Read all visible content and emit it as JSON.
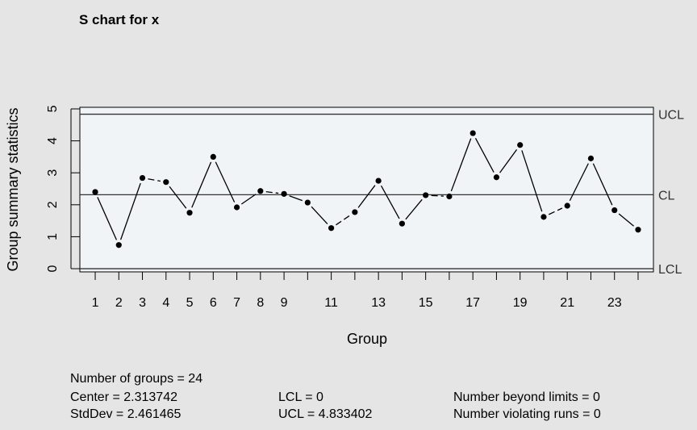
{
  "chart_data": {
    "type": "line",
    "title": "S chart for x",
    "xlabel": "Group",
    "ylabel": "Group summary statistics",
    "x": [
      1,
      2,
      3,
      4,
      5,
      6,
      7,
      8,
      9,
      10,
      11,
      12,
      13,
      14,
      15,
      16,
      17,
      18,
      19,
      20,
      21,
      22,
      23,
      24
    ],
    "values": [
      2.4,
      0.74,
      2.84,
      2.71,
      1.75,
      3.5,
      1.92,
      2.43,
      2.34,
      2.07,
      1.27,
      1.77,
      2.75,
      1.41,
      2.3,
      2.26,
      4.24,
      2.86,
      3.87,
      1.62,
      1.97,
      3.45,
      1.83,
      1.22
    ],
    "xticks": [
      1,
      2,
      3,
      4,
      5,
      6,
      7,
      8,
      9,
      11,
      13,
      15,
      17,
      19,
      21,
      23
    ],
    "yticks": [
      0,
      1,
      2,
      3,
      4,
      5
    ],
    "xlim": [
      0.35,
      24.65
    ],
    "ylim": [
      -0.1,
      5.05
    ],
    "limits": {
      "UCL": 4.833402,
      "CL": 2.313742,
      "LCL": 0
    },
    "limit_labels": [
      "UCL",
      "CL",
      "LCL"
    ],
    "colors": {
      "background": "#e5e5e5",
      "plot_area": "#f0f4f7",
      "in_limits_band": "#f0f4f7",
      "line": "#000000",
      "limit_line": "#333333"
    }
  },
  "stats": {
    "n_groups": "Number of groups = 24",
    "center": "Center = 2.313742",
    "stddev": "StdDev = 2.461465",
    "lcl": "LCL = 0",
    "ucl": "UCL = 4.833402",
    "beyond": "Number beyond limits = 0",
    "violating": "Number violating runs = 0"
  }
}
